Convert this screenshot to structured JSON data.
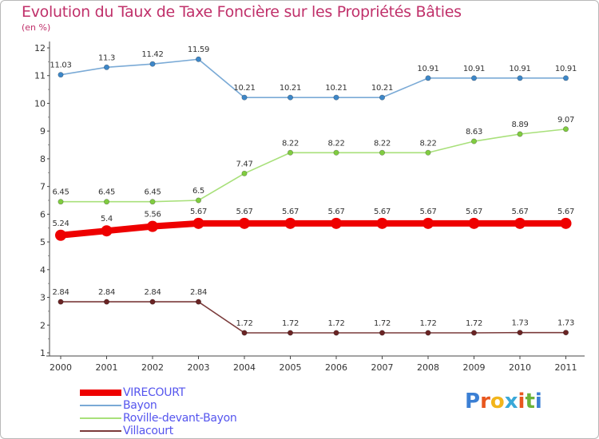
{
  "header": {
    "title": "Evolution du Taux de Taxe Foncière sur les Propriétés Bâties",
    "subtitle": "(en %)"
  },
  "brand": {
    "letters": [
      "P",
      "r",
      "o",
      "x",
      "i",
      "t",
      "i"
    ],
    "colors": [
      "#3b7fd4",
      "#e8571e",
      "#f2b51b",
      "#3aa8d8",
      "#e8571e",
      "#6bb33a",
      "#3b7fd4"
    ]
  },
  "chart_data": {
    "type": "line",
    "title": "Evolution du Taux de Taxe Foncière sur les Propriétés Bâties",
    "ylabel": "(en %)",
    "xlabel": "",
    "categories": [
      "2000",
      "2001",
      "2002",
      "2003",
      "2004",
      "2005",
      "2006",
      "2007",
      "2008",
      "2009",
      "2010",
      "2011"
    ],
    "ylim": [
      1,
      12
    ],
    "yticks": [
      "1",
      "2",
      "3",
      "4",
      "5",
      "6",
      "7",
      "8",
      "9",
      "10",
      "11",
      "12"
    ],
    "grid": false,
    "legend_position": "bottom-left",
    "series": [
      {
        "name": "VIRECOURT",
        "color": "#ee0000",
        "marker": "#ee0000",
        "emphasis": true,
        "values": [
          5.24,
          5.4,
          5.56,
          5.67,
          5.67,
          5.67,
          5.67,
          5.67,
          5.67,
          5.67,
          5.67,
          5.67
        ],
        "labels": [
          "5.24",
          "5.4",
          "5.56",
          "5.67",
          "5.67",
          "5.67",
          "5.67",
          "5.67",
          "5.67",
          "5.67",
          "5.67",
          "5.67"
        ]
      },
      {
        "name": "Bayon",
        "color": "#7aaad6",
        "marker": "#3d87c8",
        "emphasis": false,
        "values": [
          11.03,
          11.3,
          11.42,
          11.59,
          10.21,
          10.21,
          10.21,
          10.21,
          10.91,
          10.91,
          10.91,
          10.91
        ],
        "labels": [
          "11.03",
          "11.3",
          "11.42",
          "11.59",
          "10.21",
          "10.21",
          "10.21",
          "10.21",
          "10.91",
          "10.91",
          "10.91",
          "10.91"
        ]
      },
      {
        "name": "Roville-devant-Bayon",
        "color": "#a8e07a",
        "marker": "#80cc40",
        "emphasis": false,
        "values": [
          6.45,
          6.45,
          6.45,
          6.5,
          7.47,
          8.22,
          8.22,
          8.22,
          8.22,
          8.63,
          8.89,
          9.07
        ],
        "labels": [
          "6.45",
          "6.45",
          "6.45",
          "6.5",
          "7.47",
          "8.22",
          "8.22",
          "8.22",
          "8.22",
          "8.63",
          "8.89",
          "9.07"
        ]
      },
      {
        "name": "Villacourt",
        "color": "#7a3a3a",
        "marker": "#6a2424",
        "emphasis": false,
        "values": [
          2.84,
          2.84,
          2.84,
          2.84,
          1.72,
          1.72,
          1.72,
          1.72,
          1.72,
          1.72,
          1.73,
          1.73
        ],
        "labels": [
          "2.84",
          "2.84",
          "2.84",
          "2.84",
          "1.72",
          "1.72",
          "1.72",
          "1.72",
          "1.72",
          "1.72",
          "1.73",
          "1.73"
        ]
      }
    ]
  }
}
